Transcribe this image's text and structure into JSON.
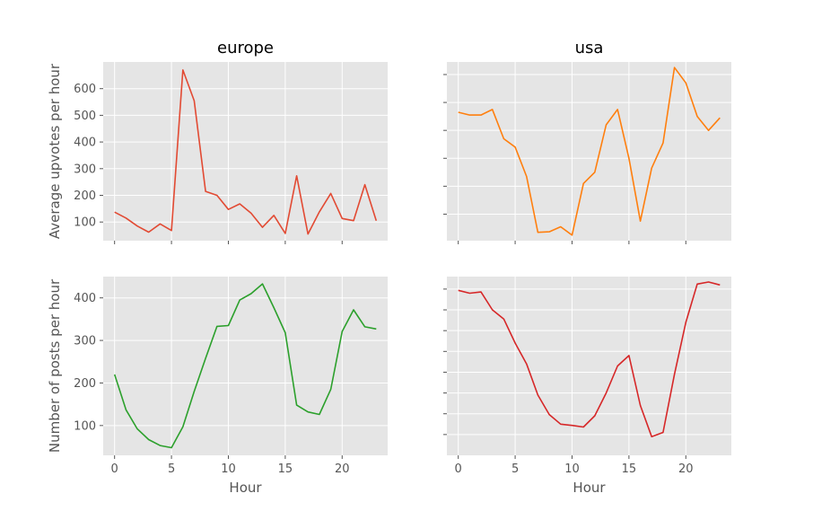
{
  "chart_data": [
    {
      "type": "line",
      "title": "europe",
      "xlabel": "",
      "ylabel": "Average upvotes per hour",
      "xlim": [
        -1,
        24
      ],
      "ylim": [
        30,
        700
      ],
      "xticks": [
        0,
        5,
        10,
        15,
        20
      ],
      "xtick_labels": [],
      "yticks": [
        100,
        200,
        300,
        400,
        500,
        600
      ],
      "ytick_labels": [
        "100",
        "200",
        "300",
        "400",
        "500",
        "600"
      ],
      "grid": true,
      "color": "#e24a33",
      "x": [
        0,
        1,
        2,
        3,
        4,
        5,
        6,
        7,
        8,
        9,
        10,
        11,
        12,
        13,
        14,
        15,
        16,
        17,
        18,
        19,
        20,
        21,
        22,
        23
      ],
      "values": [
        137,
        115,
        85,
        62,
        93,
        68,
        670,
        555,
        215,
        200,
        147,
        168,
        133,
        80,
        125,
        57,
        273,
        55,
        138,
        207,
        113,
        105,
        240,
        105
      ]
    },
    {
      "type": "line",
      "title": "usa",
      "xlabel": "",
      "ylabel": "",
      "xlim": [
        -1,
        24
      ],
      "ylim": [
        5,
        645
      ],
      "xticks": [
        0,
        5,
        10,
        15,
        20
      ],
      "xtick_labels": [],
      "yticks": [
        100,
        200,
        300,
        400,
        500,
        600
      ],
      "ytick_labels": [],
      "grid": true,
      "color": "#ff7f0e",
      "x": [
        0,
        1,
        2,
        3,
        4,
        5,
        6,
        7,
        8,
        9,
        10,
        11,
        12,
        13,
        14,
        15,
        16,
        17,
        18,
        19,
        20,
        21,
        22,
        23
      ],
      "values": [
        465,
        455,
        455,
        475,
        370,
        340,
        235,
        35,
        37,
        55,
        25,
        210,
        250,
        420,
        475,
        300,
        75,
        265,
        355,
        625,
        570,
        450,
        400,
        445
      ]
    },
    {
      "type": "line",
      "title": "",
      "xlabel": "Hour",
      "ylabel": "Number of posts per hour",
      "xlim": [
        -1,
        24
      ],
      "ylim": [
        30,
        450
      ],
      "xticks": [
        0,
        5,
        10,
        15,
        20
      ],
      "xtick_labels": [
        "0",
        "5",
        "10",
        "15",
        "20"
      ],
      "yticks": [
        100,
        200,
        300,
        400
      ],
      "ytick_labels": [
        "100",
        "200",
        "300",
        "400"
      ],
      "grid": true,
      "color": "#2ca02c",
      "x": [
        0,
        1,
        2,
        3,
        4,
        5,
        6,
        7,
        8,
        9,
        10,
        11,
        12,
        13,
        14,
        15,
        16,
        17,
        18,
        19,
        20,
        21,
        22,
        23
      ],
      "values": [
        220,
        137,
        92,
        67,
        53,
        48,
        97,
        180,
        258,
        333,
        335,
        395,
        410,
        433,
        377,
        318,
        148,
        132,
        126,
        185,
        321,
        372,
        332,
        327
      ]
    },
    {
      "type": "line",
      "title": "",
      "xlabel": "Hour",
      "ylabel": "",
      "xlim": [
        -1,
        24
      ],
      "ylim": [
        0,
        430
      ],
      "xticks": [
        0,
        5,
        10,
        15,
        20
      ],
      "xtick_labels": [
        "0",
        "5",
        "10",
        "15",
        "20"
      ],
      "yticks": [
        50,
        100,
        150,
        200,
        250,
        300,
        350,
        400
      ],
      "ytick_labels": [],
      "grid": true,
      "color": "#d62728",
      "x": [
        0,
        1,
        2,
        3,
        4,
        5,
        6,
        7,
        8,
        9,
        10,
        11,
        12,
        13,
        14,
        15,
        16,
        17,
        18,
        19,
        20,
        21,
        22,
        23
      ],
      "values": [
        397,
        390,
        393,
        350,
        328,
        270,
        220,
        145,
        98,
        75,
        72,
        68,
        95,
        150,
        215,
        240,
        120,
        45,
        55,
        195,
        320,
        412,
        417,
        410
      ]
    }
  ]
}
